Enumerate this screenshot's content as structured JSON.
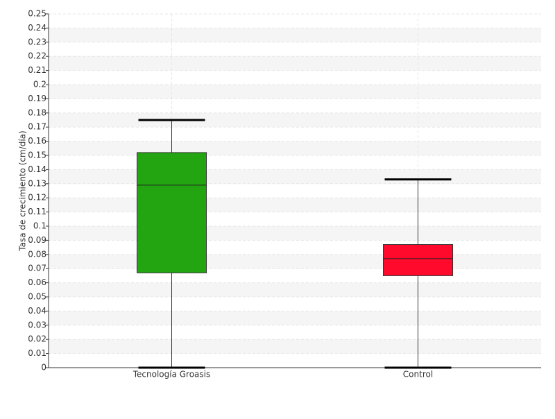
{
  "chart_data": {
    "type": "box",
    "y_label": "Tasa de crecimiento (cm/día)",
    "categories": [
      "Tecnología Groasis",
      "Control"
    ],
    "boxes": [
      {
        "min": 0,
        "q1": 0.067,
        "median": 0.129,
        "q3": 0.152,
        "max": 0.175,
        "color": "#22a511"
      },
      {
        "min": 0,
        "q1": 0.065,
        "median": 0.077,
        "q3": 0.087,
        "max": 0.133,
        "color": "#ff0a2c"
      }
    ],
    "ylim": [
      0,
      0.25
    ],
    "yticks": [
      0,
      0.01,
      0.02,
      0.03,
      0.04,
      0.05,
      0.06,
      0.07,
      0.08,
      0.09,
      0.1,
      0.11,
      0.12,
      0.13,
      0.14,
      0.15,
      0.16,
      0.17,
      0.18,
      0.19,
      0.2,
      0.21,
      0.22,
      0.23,
      0.24,
      0.25
    ],
    "grid": true
  }
}
